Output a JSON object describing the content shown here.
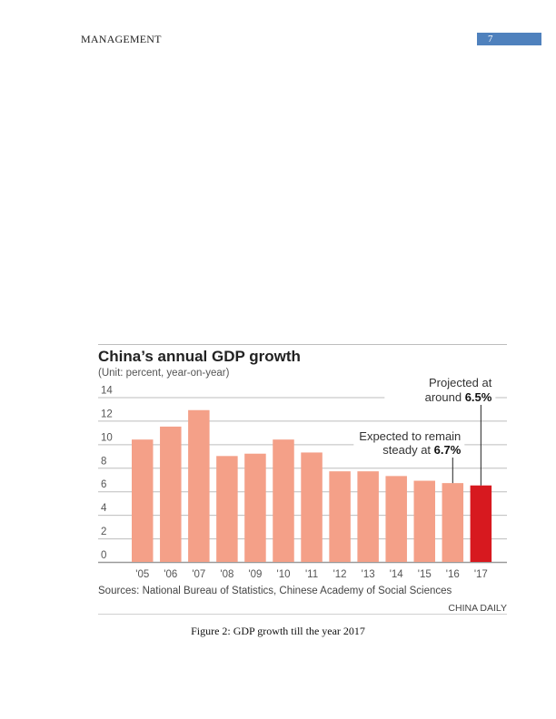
{
  "header": {
    "running_title": "MANAGEMENT",
    "page_number": "7",
    "page_box_color": "#4f81bd"
  },
  "figure": {
    "caption": "Figure 2: GDP growth till the year 2017"
  },
  "chart_data": {
    "type": "bar",
    "title": "China’s annual GDP growth",
    "subtitle": "(Unit: percent, year-on-year)",
    "xlabel": "",
    "ylabel": "",
    "categories": [
      "'05",
      "'06",
      "'07",
      "'08",
      "'09",
      "'10",
      "'11",
      "'12",
      "'13",
      "'14",
      "'15",
      "'16",
      "'17"
    ],
    "values": [
      10.4,
      11.5,
      12.9,
      9.0,
      9.2,
      10.4,
      9.3,
      7.7,
      7.7,
      7.3,
      6.9,
      6.7,
      6.5
    ],
    "ylim": [
      0,
      14
    ],
    "yticks": [
      "0",
      "2",
      "4",
      "6",
      "8",
      "10",
      "12",
      "14"
    ],
    "grid": true,
    "colors": {
      "bar": "#f4a088",
      "highlight": "#d7191f",
      "grid": "#bdbdbd",
      "text": "#222222",
      "muted": "#555555"
    },
    "highlight_index": 12,
    "annotations": [
      {
        "target": "'16",
        "line1": "Expected to remain",
        "line2_prefix": "steady at ",
        "line2_bold": "6.7%"
      },
      {
        "target": "'17",
        "line1": "Projected at",
        "line2_prefix": "around ",
        "line2_bold": "6.5%"
      }
    ],
    "source": "Sources: National Bureau of Statistics, Chinese Academy of Social Sciences",
    "credit": "CHINA DAILY"
  }
}
